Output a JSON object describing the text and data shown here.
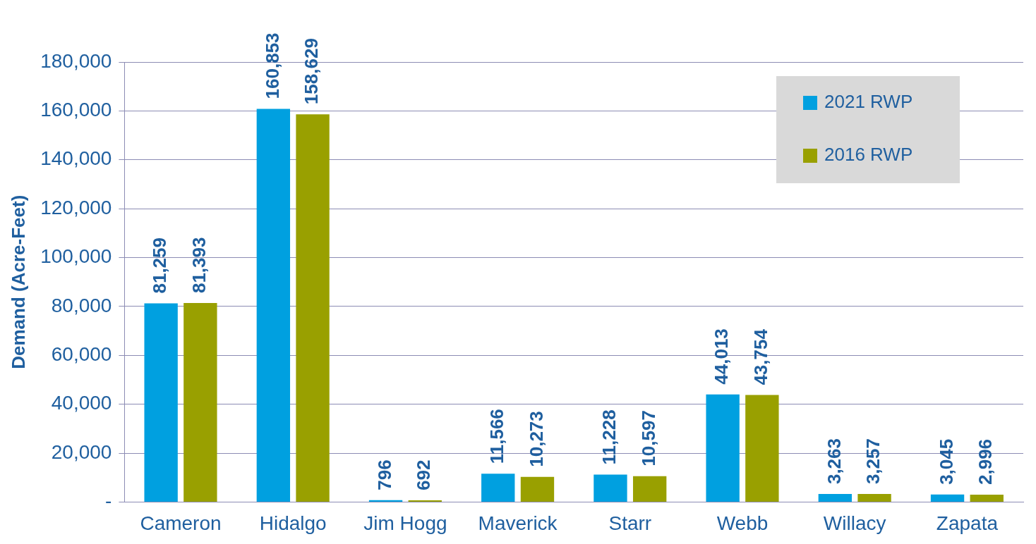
{
  "chart_data": {
    "type": "bar",
    "ylabel": "Demand (Acre-Feet)",
    "categories": [
      "Cameron",
      "Hidalgo",
      "Jim Hogg",
      "Maverick",
      "Starr",
      "Webb",
      "Willacy",
      "Zapata"
    ],
    "series": [
      {
        "name": "2021 RWP",
        "color": "#00a0e0",
        "values": [
          81259,
          160853,
          796,
          11566,
          11228,
          44013,
          3263,
          3045
        ],
        "value_labels": [
          "81,259",
          "160,853",
          "796",
          "11,566",
          "11,228",
          "44,013",
          "3,263",
          "3,045"
        ]
      },
      {
        "name": "2016 RWP",
        "color": "#99a000",
        "values": [
          81393,
          158629,
          692,
          10273,
          10597,
          43754,
          3257,
          2996
        ],
        "value_labels": [
          "81,393",
          "158,629",
          "692",
          "10,273",
          "10,597",
          "43,754",
          "3,257",
          "2,996"
        ]
      }
    ],
    "ylim": [
      0,
      180000
    ],
    "yticks": [
      {
        "value": 0,
        "label": "-"
      },
      {
        "value": 20000,
        "label": "20,000"
      },
      {
        "value": 40000,
        "label": "40,000"
      },
      {
        "value": 60000,
        "label": "60,000"
      },
      {
        "value": 80000,
        "label": "80,000"
      },
      {
        "value": 100000,
        "label": "100,000"
      },
      {
        "value": 120000,
        "label": "120,000"
      },
      {
        "value": 140000,
        "label": "140,000"
      },
      {
        "value": 160000,
        "label": "160,000"
      },
      {
        "value": 180000,
        "label": "180,000"
      }
    ],
    "grid": "y",
    "legend": "top right"
  }
}
